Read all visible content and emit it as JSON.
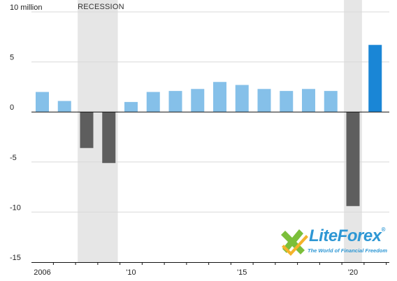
{
  "chart_data": {
    "type": "bar",
    "ylabel": "10 million",
    "ylim": [
      -15,
      10
    ],
    "yticks": [
      {
        "value": 10,
        "label": "10 million"
      },
      {
        "value": 5,
        "label": "5"
      },
      {
        "value": 0,
        "label": "0"
      },
      {
        "value": -5,
        "label": "-5"
      },
      {
        "value": -10,
        "label": "-10"
      },
      {
        "value": -15,
        "label": "-15"
      }
    ],
    "xticks": [
      {
        "year": 2006,
        "label": "2006"
      },
      {
        "year": 2010,
        "label": "'10"
      },
      {
        "year": 2015,
        "label": "'15"
      },
      {
        "year": 2020,
        "label": "'20"
      }
    ],
    "grid": true,
    "recession_label": "RECESSION",
    "recessions": [
      [
        2008,
        2009
      ],
      [
        2020,
        2020
      ]
    ],
    "bars": [
      {
        "year": 2006,
        "value": 2.0,
        "kind": "positive"
      },
      {
        "year": 2007,
        "value": 1.1,
        "kind": "positive"
      },
      {
        "year": 2008,
        "value": -3.6,
        "kind": "negative"
      },
      {
        "year": 2009,
        "value": -5.1,
        "kind": "negative"
      },
      {
        "year": 2010,
        "value": 1.0,
        "kind": "positive"
      },
      {
        "year": 2011,
        "value": 2.0,
        "kind": "positive"
      },
      {
        "year": 2012,
        "value": 2.1,
        "kind": "positive"
      },
      {
        "year": 2013,
        "value": 2.3,
        "kind": "positive"
      },
      {
        "year": 2014,
        "value": 3.0,
        "kind": "positive"
      },
      {
        "year": 2015,
        "value": 2.7,
        "kind": "positive"
      },
      {
        "year": 2016,
        "value": 2.3,
        "kind": "positive"
      },
      {
        "year": 2017,
        "value": 2.1,
        "kind": "positive"
      },
      {
        "year": 2018,
        "value": 2.3,
        "kind": "positive"
      },
      {
        "year": 2019,
        "value": 2.1,
        "kind": "positive"
      },
      {
        "year": 2020,
        "value": -9.4,
        "kind": "negative"
      },
      {
        "year": 2021,
        "value": 6.7,
        "kind": "highlight"
      }
    ],
    "colors": {
      "positive": "#85c0e9",
      "negative": "#5e5e5e",
      "highlight": "#1a86d6",
      "recession": "#e6e6e6"
    }
  },
  "watermark": {
    "name": "LiteForex",
    "registered": "®",
    "tagline": "The World of Financial Freedom"
  }
}
